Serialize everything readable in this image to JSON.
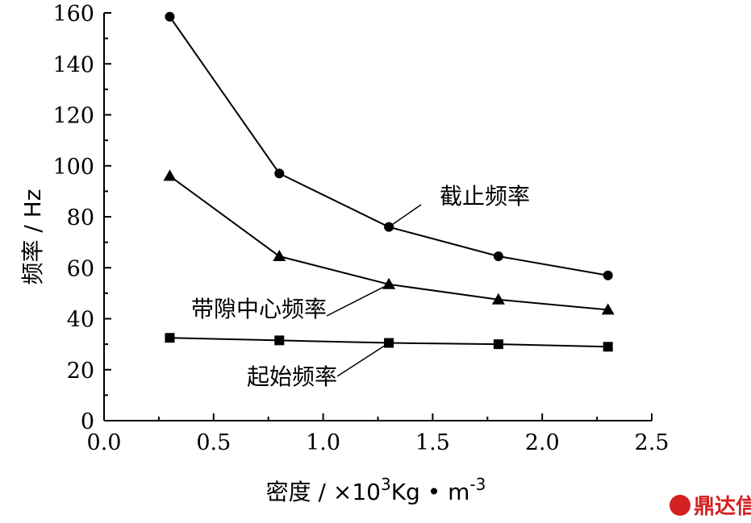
{
  "chart_data": {
    "type": "line",
    "xlabel": "密度 / ×10³Kg·m⁻³",
    "xlabel_parts": [
      "密度 / ×10",
      "3",
      "Kg • m",
      "-3"
    ],
    "ylabel": "频率 / Hz",
    "xlim": [
      0.0,
      2.5
    ],
    "ylim": [
      0,
      160
    ],
    "x_ticks": [
      "0.0",
      "0.5",
      "1.0",
      "1.5",
      "2.0",
      "2.5"
    ],
    "y_ticks": [
      "0",
      "20",
      "40",
      "60",
      "80",
      "100",
      "120",
      "140",
      "160"
    ],
    "x": [
      0.3,
      0.8,
      1.3,
      1.8,
      2.3
    ],
    "series": [
      {
        "name": "截止频率",
        "marker": "circle",
        "values": [
          158.5,
          97,
          76,
          64.5,
          57
        ]
      },
      {
        "name": "带隙中心频率",
        "marker": "triangle",
        "values": [
          96,
          64.5,
          53.5,
          47.5,
          43.5
        ]
      },
      {
        "name": "起始频率",
        "marker": "square",
        "values": [
          32.5,
          31.5,
          30.5,
          30,
          29
        ]
      }
    ],
    "grid": false,
    "legend": "none"
  },
  "watermark": {
    "text": "鼎达信",
    "color": "#d42020"
  }
}
